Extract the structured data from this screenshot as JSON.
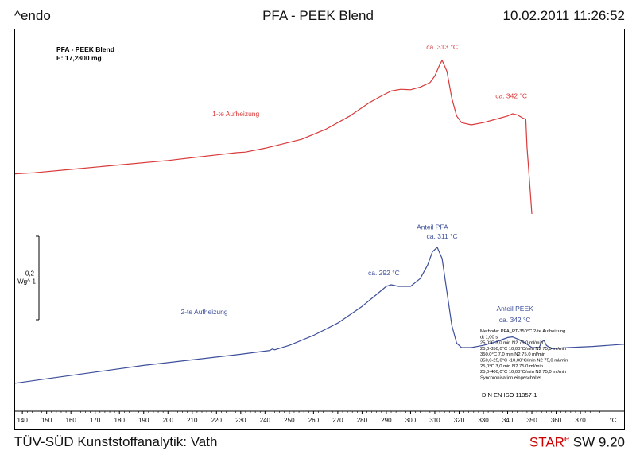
{
  "header": {
    "left": "^endo",
    "title": "PFA - PEEK Blend",
    "datetime": "10.02.2011 11:26:52"
  },
  "sample": {
    "name": "PFA - PEEK Blend",
    "mass": "E: 17,2800 mg"
  },
  "scale_bar": {
    "value": "0,2",
    "unit": "Wg^-1"
  },
  "method_box": {
    "lines": [
      "Methode: PFA_RT-350°C 2-te Aufheizung",
      "dt 1,00 s",
      "  25,0°C 3,0 min           N2 75,0 ml/min",
      "  25,0-350,0°C 10,00°C/min     N2 75,0 ml/min",
      "  350,0°C 7,0 min          N2 75,0 ml/min",
      "  350,0-25,0°C -10,00°C/min    N2 75,0 ml/min",
      "  25,0°C 3,0 min           N2 75,0 ml/min",
      "  25,0-400,0°C 10,00°C/min     N2 75,0 ml/min",
      "Synchronisation eingeschaltet"
    ],
    "standard": "DIN EN ISO 11357-1"
  },
  "footer": {
    "left": "TÜV-SÜD Kunststoffanalytik: Vath",
    "brand_star": "STAR",
    "brand_e": "e",
    "brand_version": "SW 9.20"
  },
  "colors": {
    "curve1": "#d93a3a",
    "curve2": "#3d4f9a",
    "axis": "#000000"
  },
  "chart_data": {
    "type": "line",
    "xlabel": "°C",
    "xlim": [
      137,
      388
    ],
    "x_ticks": [
      140,
      150,
      160,
      170,
      180,
      190,
      200,
      210,
      220,
      230,
      240,
      250,
      260,
      270,
      280,
      290,
      300,
      310,
      320,
      330,
      340,
      350,
      360,
      370
    ],
    "series": [
      {
        "name": "1-te Aufheizung",
        "color": "#d93a3a",
        "x": [
          137,
          145,
          160,
          180,
          200,
          220,
          228,
          232,
          240,
          255,
          265,
          275,
          283,
          288,
          292,
          296,
          300,
          304,
          308,
          310,
          312,
          313,
          315,
          317,
          319,
          321,
          325,
          330,
          335,
          340,
          342,
          344,
          346,
          347.5,
          348,
          349,
          350
        ],
        "y": [
          -0.02,
          -0.015,
          0.0,
          0.02,
          0.04,
          0.065,
          0.075,
          0.078,
          0.095,
          0.135,
          0.18,
          0.24,
          0.3,
          0.33,
          0.352,
          0.36,
          0.358,
          0.37,
          0.39,
          0.42,
          0.47,
          0.49,
          0.44,
          0.32,
          0.24,
          0.21,
          0.2,
          0.21,
          0.225,
          0.24,
          0.25,
          0.245,
          0.232,
          0.225,
          0.1,
          -0.05,
          -0.2
        ]
      },
      {
        "name": "2-te Aufheizung",
        "color": "#3d4f9a",
        "x": [
          137,
          150,
          170,
          190,
          210,
          230,
          242,
          243,
          244,
          250,
          260,
          270,
          280,
          285,
          290,
          292,
          295,
          300,
          304,
          307,
          309,
          311,
          313,
          315,
          317,
          319,
          321,
          325,
          330,
          335,
          340,
          342,
          346,
          350,
          353,
          354,
          355,
          356,
          358,
          365,
          375,
          388
        ],
        "y": [
          -0.96,
          -0.94,
          -0.91,
          -0.88,
          -0.855,
          -0.83,
          -0.813,
          -0.806,
          -0.81,
          -0.79,
          -0.745,
          -0.69,
          -0.615,
          -0.57,
          -0.525,
          -0.518,
          -0.525,
          -0.525,
          -0.49,
          -0.43,
          -0.37,
          -0.35,
          -0.4,
          -0.55,
          -0.7,
          -0.78,
          -0.8,
          -0.8,
          -0.79,
          -0.775,
          -0.755,
          -0.752,
          -0.77,
          -0.8,
          -0.8,
          -0.775,
          -0.768,
          -0.79,
          -0.805,
          -0.8,
          -0.795,
          -0.785
        ]
      }
    ],
    "annotations": [
      {
        "text": "ca. 313 °C",
        "x": 313,
        "y": 0.54,
        "series": 0
      },
      {
        "text": "1-te Aufheizung",
        "x": 228,
        "y": 0.24,
        "series": 0
      },
      {
        "text": "ca. 342 °C",
        "x": 341.5,
        "y": 0.32,
        "series": 0
      },
      {
        "text": "Anteil PFA",
        "x": 309,
        "y": -0.27,
        "series": 1
      },
      {
        "text": "ca. 311 °C",
        "x": 313,
        "y": -0.31,
        "series": 1
      },
      {
        "text": "ca. 292 °C",
        "x": 289,
        "y": -0.475,
        "series": 1
      },
      {
        "text": "2-te Aufheizung",
        "x": 215,
        "y": -0.65,
        "series": 1
      },
      {
        "text": "Anteil PEEK",
        "x": 343,
        "y": -0.635,
        "series": 1
      },
      {
        "text": "ca. 342 °C",
        "x": 343,
        "y": -0.685,
        "series": 1
      }
    ],
    "scale_bar_range": [
      -0.675,
      -0.3
    ]
  }
}
